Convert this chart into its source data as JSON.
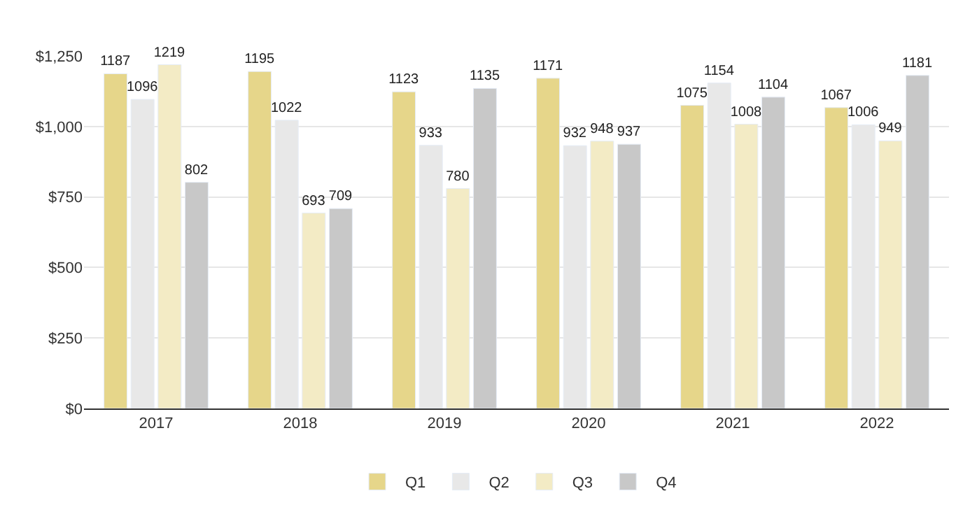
{
  "chart_data": {
    "type": "bar",
    "categories": [
      "2017",
      "2018",
      "2019",
      "2020",
      "2021",
      "2022"
    ],
    "series": [
      {
        "name": "Q1",
        "color": "#e6d68a",
        "values": [
          1187,
          1195,
          1123,
          1171,
          1075,
          1067
        ]
      },
      {
        "name": "Q2",
        "color": "#e8e8e8",
        "values": [
          1096,
          1022,
          933,
          932,
          1154,
          1006
        ]
      },
      {
        "name": "Q3",
        "color": "#f3ebc5",
        "values": [
          1219,
          693,
          780,
          948,
          1008,
          949
        ]
      },
      {
        "name": "Q4",
        "color": "#c8c8c8",
        "values": [
          802,
          709,
          1135,
          937,
          1104,
          1181
        ]
      }
    ],
    "ylim": [
      0,
      1250
    ],
    "yticks": [
      {
        "value": 0,
        "label": "$0"
      },
      {
        "value": 250,
        "label": "$250"
      },
      {
        "value": 500,
        "label": "$500"
      },
      {
        "value": 750,
        "label": "$750"
      },
      {
        "value": 1000,
        "label": "$1,000"
      },
      {
        "value": 1250,
        "label": "$1,250"
      }
    ],
    "grid": "y",
    "legend": "bottom",
    "data_labels": true
  }
}
